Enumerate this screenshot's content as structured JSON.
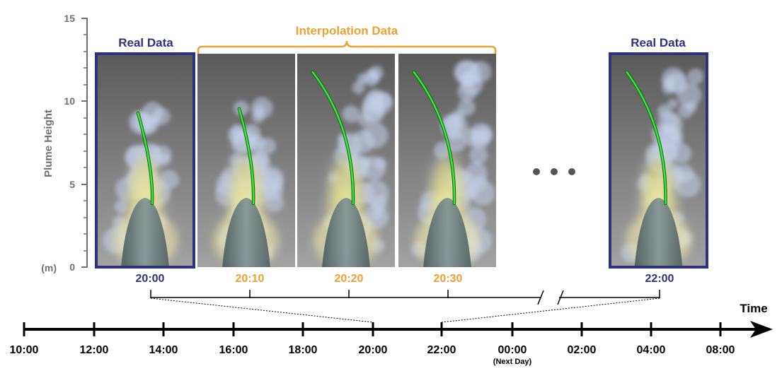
{
  "y_axis": {
    "label": "Plume Height",
    "unit": "(m)",
    "ticks": [
      "0",
      "5",
      "10",
      "15"
    ]
  },
  "groups": {
    "real_left": "Real Data",
    "interpolation": "Interpolation Data",
    "real_right": "Real Data"
  },
  "frames": [
    {
      "time": "20:00",
      "kind": "real"
    },
    {
      "time": "20:10",
      "kind": "interpolated"
    },
    {
      "time": "20:20",
      "kind": "interpolated"
    },
    {
      "time": "20:30",
      "kind": "interpolated"
    },
    {
      "time": "22:00",
      "kind": "real"
    }
  ],
  "ellipsis": "• • •",
  "timeline": {
    "title": "Time",
    "ticks": [
      "10:00",
      "12:00",
      "14:00",
      "16:00",
      "18:00",
      "20:00",
      "22:00",
      "00:00",
      "02:00",
      "04:00",
      "08:00"
    ],
    "note": "(Next Day)"
  },
  "colors": {
    "real": "#2e3080",
    "interpolation": "#f0a030",
    "axis": "#707070",
    "green_curve": "#22cc22"
  }
}
